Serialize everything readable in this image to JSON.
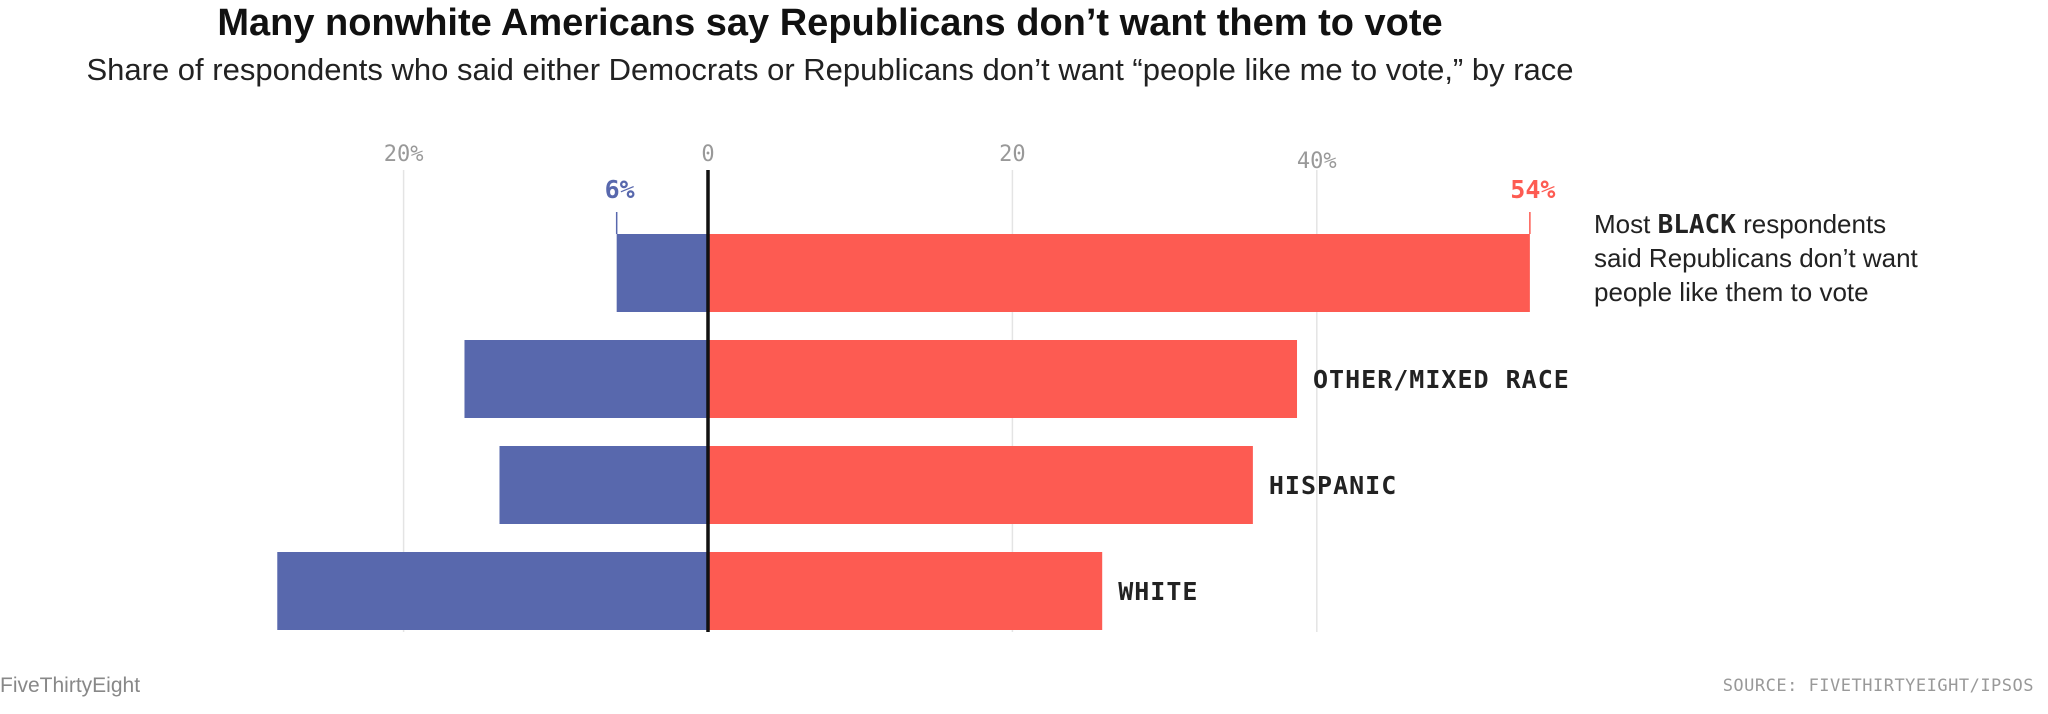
{
  "title": "Many nonwhite Americans say Republicans don’t want them to vote",
  "subtitle": "Share of respondents who said either Democrats or Republicans don’t want “people like me to vote,” by race",
  "footer": {
    "brand": "FiveThirtyEight",
    "source": "SOURCE: FIVETHIRTYEIGHT/IPSOS"
  },
  "annotation": {
    "before": "Most ",
    "emphasis": "BLACK",
    "after": " respondents",
    "line2": "said Republicans don’t want",
    "line3": "people like them to vote"
  },
  "colors": {
    "democrats": "#5868ad",
    "republicans": "#fd5b52",
    "zero_line": "#111111",
    "grid": "#e4e4e4"
  },
  "chart_data": {
    "type": "bar",
    "orientation": "horizontal-diverging",
    "categories": [
      "BLACK",
      "OTHER/MIXED RACE",
      "HISPANIC",
      "WHITE"
    ],
    "series": [
      {
        "name": "Democrats",
        "values": [
          6,
          16,
          13.7,
          28.3
        ],
        "direction": "left"
      },
      {
        "name": "Republicans",
        "values": [
          54,
          38.7,
          35.8,
          25.9
        ],
        "direction": "right"
      }
    ],
    "value_labels": {
      "democrats_first": "6%",
      "republicans_first": "54%"
    },
    "axis_ticks": [
      {
        "value": -20,
        "label": "20%"
      },
      {
        "value": 0,
        "label": "0"
      },
      {
        "value": 20,
        "label": "20"
      },
      {
        "value": 40,
        "label": "40%"
      }
    ],
    "xlim": [
      -28.3,
      54
    ],
    "grid": true
  }
}
